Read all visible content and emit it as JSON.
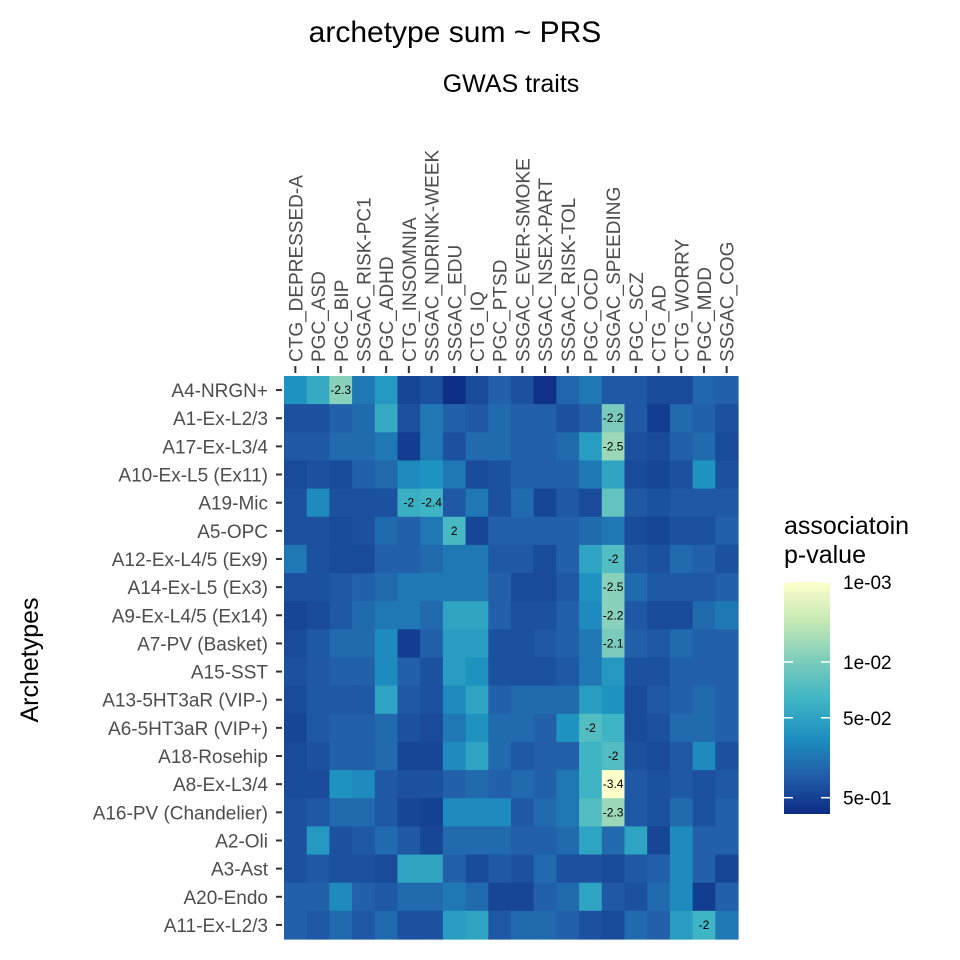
{
  "chart_data": {
    "type": "heatmap",
    "title": "archetype sum ~ PRS",
    "xlabel": "GWAS traits",
    "ylabel": "Archetypes",
    "x_axis_position": "top",
    "columns": [
      "CTG_DEPRESSED-A",
      "PGC_ASD",
      "PGC_BIP",
      "SSGAC_RISK-PC1",
      "PGC_ADHD",
      "CTG_INSOMNIA",
      "SSGAC_NDRINK-WEEK",
      "SSGAC_EDU",
      "CTG_IQ",
      "PGC_PTSD",
      "SSGAC_EVER-SMOKE",
      "SSGAC_NSEX-PART",
      "SSGAC_RISK-TOL",
      "PGC_OCD",
      "SSGAC_SPEEDING",
      "PGC_SCZ",
      "CTG_AD",
      "CTG_WORRY",
      "PGC_MDD",
      "SSGAC_COG"
    ],
    "rows": [
      "A4-NRGN+",
      "A1-Ex-L2/3",
      "A17-Ex-L3/4",
      "A10-Ex-L5 (Ex11)",
      "A19-Mic",
      "A5-OPC",
      "A12-Ex-L4/5 (Ex9)",
      "A14-Ex-L5 (Ex3)",
      "A9-Ex-L4/5 (Ex14)",
      "A7-PV (Basket)",
      "A15-SST",
      "A13-5HT3aR (VIP-)",
      "A6-5HT3aR (VIP+)",
      "A18-Rosehip",
      "A8-Ex-L3/4",
      "A16-PV (Chandelier)",
      "A2-Oli",
      "A3-Ast",
      "A20-Endo",
      "A11-Ex-L2/3"
    ],
    "pvalues": [
      [
        0.08,
        0.04,
        0.008,
        0.15,
        0.07,
        0.45,
        0.35,
        0.75,
        0.4,
        0.25,
        0.35,
        0.7,
        0.22,
        0.15,
        0.3,
        0.3,
        0.4,
        0.4,
        0.22,
        0.25
      ],
      [
        0.35,
        0.35,
        0.25,
        0.2,
        0.04,
        0.35,
        0.15,
        0.25,
        0.3,
        0.2,
        0.25,
        0.25,
        0.35,
        0.25,
        0.01,
        0.3,
        0.55,
        0.2,
        0.25,
        0.35
      ],
      [
        0.3,
        0.3,
        0.2,
        0.2,
        0.15,
        0.55,
        0.15,
        0.35,
        0.2,
        0.2,
        0.25,
        0.25,
        0.2,
        0.06,
        0.006,
        0.35,
        0.4,
        0.25,
        0.2,
        0.4
      ],
      [
        0.4,
        0.35,
        0.4,
        0.25,
        0.2,
        0.1,
        0.08,
        0.15,
        0.4,
        0.35,
        0.25,
        0.25,
        0.25,
        0.15,
        0.05,
        0.4,
        0.45,
        0.35,
        0.08,
        0.35
      ],
      [
        0.35,
        0.1,
        0.35,
        0.35,
        0.35,
        0.035,
        0.03,
        0.3,
        0.15,
        0.35,
        0.2,
        0.45,
        0.3,
        0.4,
        0.015,
        0.3,
        0.35,
        0.3,
        0.3,
        0.3
      ],
      [
        0.35,
        0.35,
        0.4,
        0.35,
        0.2,
        0.25,
        0.15,
        0.025,
        0.45,
        0.25,
        0.25,
        0.25,
        0.25,
        0.2,
        0.15,
        0.4,
        0.45,
        0.35,
        0.35,
        0.25
      ],
      [
        0.15,
        0.35,
        0.4,
        0.4,
        0.25,
        0.25,
        0.2,
        0.15,
        0.15,
        0.3,
        0.3,
        0.4,
        0.25,
        0.05,
        0.02,
        0.3,
        0.35,
        0.2,
        0.25,
        0.35
      ],
      [
        0.35,
        0.35,
        0.3,
        0.25,
        0.2,
        0.15,
        0.15,
        0.15,
        0.15,
        0.25,
        0.4,
        0.4,
        0.3,
        0.08,
        0.008,
        0.2,
        0.3,
        0.3,
        0.3,
        0.25
      ],
      [
        0.45,
        0.4,
        0.3,
        0.2,
        0.15,
        0.15,
        0.2,
        0.05,
        0.05,
        0.25,
        0.35,
        0.35,
        0.25,
        0.1,
        0.008,
        0.3,
        0.4,
        0.4,
        0.2,
        0.15
      ],
      [
        0.4,
        0.3,
        0.2,
        0.2,
        0.1,
        0.55,
        0.25,
        0.06,
        0.06,
        0.35,
        0.35,
        0.3,
        0.25,
        0.15,
        0.01,
        0.25,
        0.3,
        0.2,
        0.25,
        0.25
      ],
      [
        0.35,
        0.3,
        0.25,
        0.25,
        0.1,
        0.25,
        0.35,
        0.06,
        0.08,
        0.35,
        0.35,
        0.35,
        0.3,
        0.15,
        0.07,
        0.35,
        0.35,
        0.25,
        0.25,
        0.25
      ],
      [
        0.4,
        0.3,
        0.3,
        0.3,
        0.05,
        0.3,
        0.35,
        0.1,
        0.05,
        0.25,
        0.2,
        0.2,
        0.2,
        0.06,
        0.08,
        0.4,
        0.3,
        0.25,
        0.2,
        0.25
      ],
      [
        0.45,
        0.3,
        0.25,
        0.25,
        0.2,
        0.35,
        0.4,
        0.15,
        0.08,
        0.2,
        0.2,
        0.25,
        0.08,
        0.02,
        0.03,
        0.4,
        0.35,
        0.2,
        0.2,
        0.25
      ],
      [
        0.4,
        0.35,
        0.25,
        0.25,
        0.2,
        0.45,
        0.45,
        0.1,
        0.05,
        0.2,
        0.3,
        0.25,
        0.25,
        0.03,
        0.02,
        0.35,
        0.4,
        0.3,
        0.1,
        0.35
      ],
      [
        0.4,
        0.4,
        0.08,
        0.1,
        0.3,
        0.35,
        0.35,
        0.25,
        0.2,
        0.25,
        0.2,
        0.25,
        0.15,
        0.03,
        0.001,
        0.3,
        0.35,
        0.3,
        0.35,
        0.3
      ],
      [
        0.35,
        0.3,
        0.2,
        0.2,
        0.3,
        0.45,
        0.5,
        0.1,
        0.1,
        0.1,
        0.3,
        0.2,
        0.15,
        0.02,
        0.006,
        0.3,
        0.35,
        0.2,
        0.35,
        0.25
      ],
      [
        0.35,
        0.07,
        0.35,
        0.3,
        0.2,
        0.3,
        0.45,
        0.2,
        0.2,
        0.2,
        0.25,
        0.25,
        0.2,
        0.05,
        0.2,
        0.05,
        0.45,
        0.1,
        0.25,
        0.25
      ],
      [
        0.35,
        0.3,
        0.35,
        0.35,
        0.4,
        0.05,
        0.05,
        0.25,
        0.4,
        0.3,
        0.35,
        0.2,
        0.35,
        0.35,
        0.4,
        0.3,
        0.25,
        0.1,
        0.25,
        0.45
      ],
      [
        0.25,
        0.25,
        0.1,
        0.25,
        0.3,
        0.2,
        0.2,
        0.15,
        0.2,
        0.45,
        0.45,
        0.25,
        0.2,
        0.05,
        0.3,
        0.35,
        0.2,
        0.1,
        0.55,
        0.25
      ],
      [
        0.25,
        0.3,
        0.2,
        0.3,
        0.2,
        0.35,
        0.35,
        0.06,
        0.05,
        0.3,
        0.2,
        0.2,
        0.25,
        0.35,
        0.4,
        0.2,
        0.25,
        0.06,
        0.03,
        0.15
      ]
    ],
    "annotations": [
      {
        "row": "A4-NRGN+",
        "col": "PGC_BIP",
        "label": "-2.3"
      },
      {
        "row": "A1-Ex-L2/3",
        "col": "SSGAC_SPEEDING",
        "label": "-2.2"
      },
      {
        "row": "A17-Ex-L3/4",
        "col": "SSGAC_SPEEDING",
        "label": "-2.5"
      },
      {
        "row": "A19-Mic",
        "col": "CTG_INSOMNIA",
        "label": "-2"
      },
      {
        "row": "A19-Mic",
        "col": "SSGAC_NDRINK-WEEK",
        "label": "-2.4"
      },
      {
        "row": "A5-OPC",
        "col": "SSGAC_EDU",
        "label": "2"
      },
      {
        "row": "A12-Ex-L4/5 (Ex9)",
        "col": "SSGAC_SPEEDING",
        "label": "-2"
      },
      {
        "row": "A14-Ex-L5 (Ex3)",
        "col": "SSGAC_SPEEDING",
        "label": "-2.5"
      },
      {
        "row": "A9-Ex-L4/5 (Ex14)",
        "col": "SSGAC_SPEEDING",
        "label": "-2.2"
      },
      {
        "row": "A7-PV (Basket)",
        "col": "SSGAC_SPEEDING",
        "label": "-2.1"
      },
      {
        "row": "A6-5HT3aR (VIP+)",
        "col": "PGC_OCD",
        "label": "-2"
      },
      {
        "row": "A18-Rosehip",
        "col": "SSGAC_SPEEDING",
        "label": "-2"
      },
      {
        "row": "A8-Ex-L3/4",
        "col": "SSGAC_SPEEDING",
        "label": "-3.4"
      },
      {
        "row": "A16-PV (Chandelier)",
        "col": "SSGAC_SPEEDING",
        "label": "-2.3"
      },
      {
        "row": "A11-Ex-L2/3",
        "col": "PGC_MDD",
        "label": "-2"
      }
    ],
    "legend": {
      "title_lines": [
        "associatoin",
        "p-value"
      ],
      "position": "right",
      "scale": "log",
      "range": [
        0.001,
        0.8
      ],
      "ticks": [
        {
          "value": 0.001,
          "label": "1e-03"
        },
        {
          "value": 0.01,
          "label": "1e-02"
        },
        {
          "value": 0.05,
          "label": "5e-02"
        },
        {
          "value": 0.5,
          "label": "5e-01"
        }
      ],
      "colors": [
        "#ffffcc",
        "#c7e9b4",
        "#7fcdbb",
        "#41b6c4",
        "#1d91c0",
        "#225ea8",
        "#0c2c84"
      ]
    },
    "grid": false
  }
}
